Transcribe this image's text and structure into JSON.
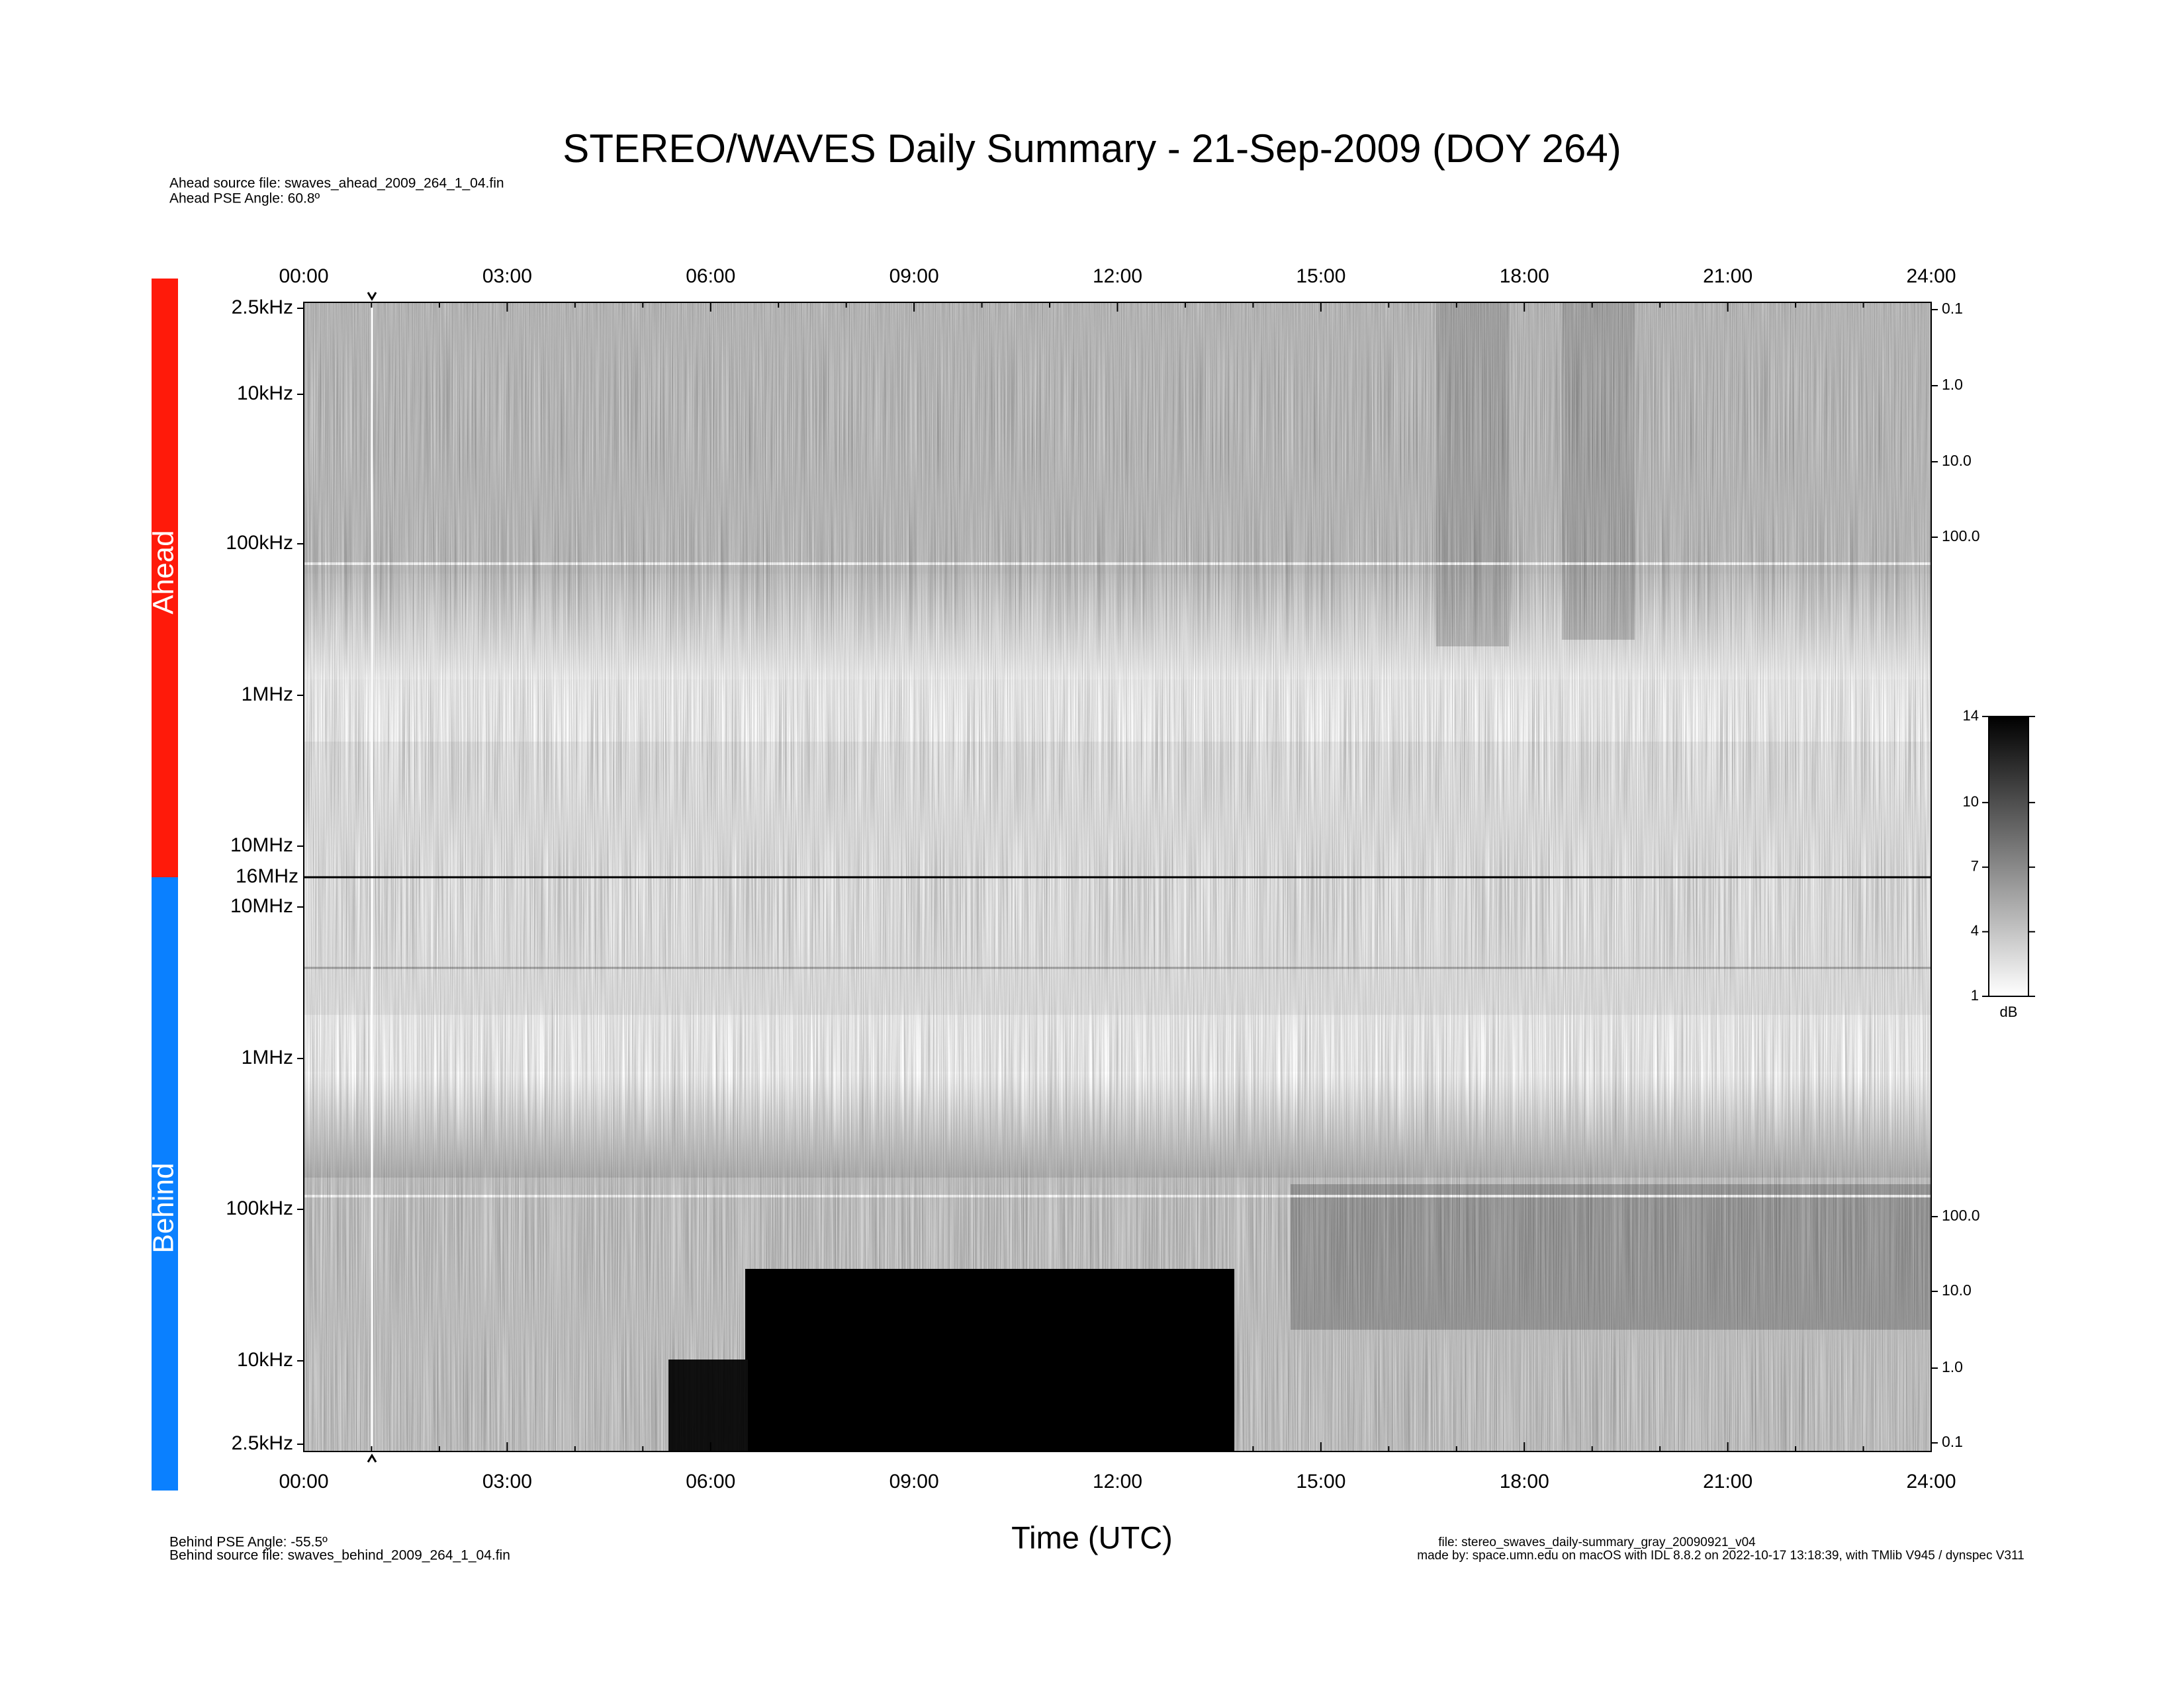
{
  "title": "STEREO/WAVES Daily Summary - 21-Sep-2009 (DOY 264)",
  "header_notes": [
    "Ahead source file: swaves_ahead_2009_264_1_04.fin",
    "Ahead PSE Angle:   60.8º"
  ],
  "footer_left": [
    "Behind PSE Angle:  -55.5º",
    "Behind source file: swaves_behind_2009_264_1_04.fin"
  ],
  "footer_right": [
    "file: stereo_swaves_daily-summary_gray_20090921_v04",
    "made by: space.umn.edu on macOS with IDL 8.8.2 on 2022-10-17 13:18:39, with TMlib V945 / dynspec V311"
  ],
  "x_label": "Time (UTC)",
  "time_ticks": [
    "00:00",
    "03:00",
    "06:00",
    "09:00",
    "12:00",
    "15:00",
    "18:00",
    "21:00",
    "24:00"
  ],
  "boundary_label": "16MHz",
  "panels": [
    {
      "label": "Ahead",
      "color": "#ff1a0a",
      "freq_ticks": [
        "2.5kHz",
        "10kHz",
        "100kHz",
        "1MHz",
        "10MHz"
      ],
      "right_ticks": [
        "0.1",
        "1.0",
        "10.0",
        "100.0"
      ]
    },
    {
      "label": "Behind",
      "color": "#0a80ff",
      "freq_ticks": [
        "10MHz",
        "1MHz",
        "100kHz",
        "10kHz",
        "2.5kHz"
      ],
      "right_ticks": [
        "100.0",
        "10.0",
        "1.0",
        "0.1"
      ]
    }
  ],
  "colorbar": {
    "ticks": [
      1,
      4,
      7,
      10,
      14
    ],
    "unit": "dB"
  }
}
